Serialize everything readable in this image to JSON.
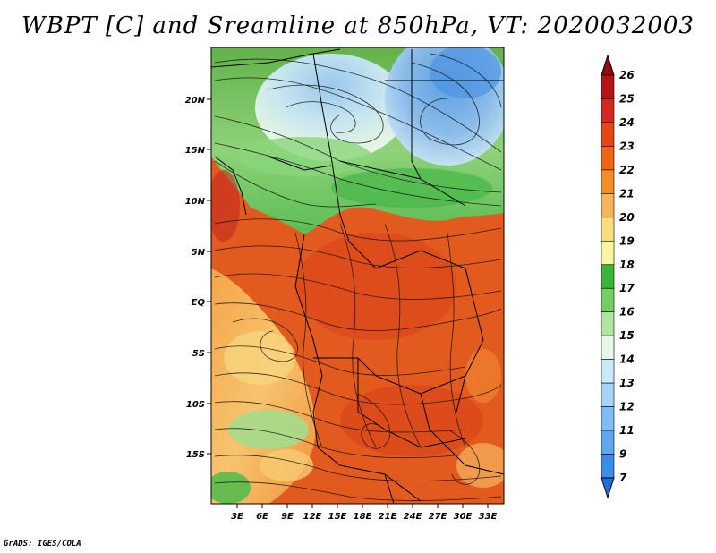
{
  "title": "WBPT [C] and Sreamline at 850hPa, VT: 2020032003",
  "credit": "GrADS: IGES/COLA",
  "map": {
    "lat_labels": [
      "20N",
      "15N",
      "10N",
      "5N",
      "EQ",
      "5S",
      "10S",
      "15S"
    ],
    "lon_labels": [
      "3E",
      "6E",
      "9E",
      "12E",
      "15E",
      "18E",
      "21E",
      "24E",
      "27E",
      "30E",
      "33E"
    ]
  },
  "colorbar": {
    "levels": [
      "7",
      "9",
      "11",
      "12",
      "13",
      "14",
      "15",
      "16",
      "17",
      "18",
      "19",
      "20",
      "21",
      "22",
      "23",
      "24",
      "25",
      "26"
    ],
    "colors": [
      "#1e6fdc",
      "#3a8ce6",
      "#5fa6ee",
      "#82bcf4",
      "#a6d3fa",
      "#cce9fc",
      "#e6f7e6",
      "#aee6a0",
      "#72cf63",
      "#3cb43c",
      "#faf5a0",
      "#fadc82",
      "#f5b45a",
      "#f58c28",
      "#f06414",
      "#e64614",
      "#d2281e",
      "#b41414",
      "#960a0a"
    ]
  }
}
